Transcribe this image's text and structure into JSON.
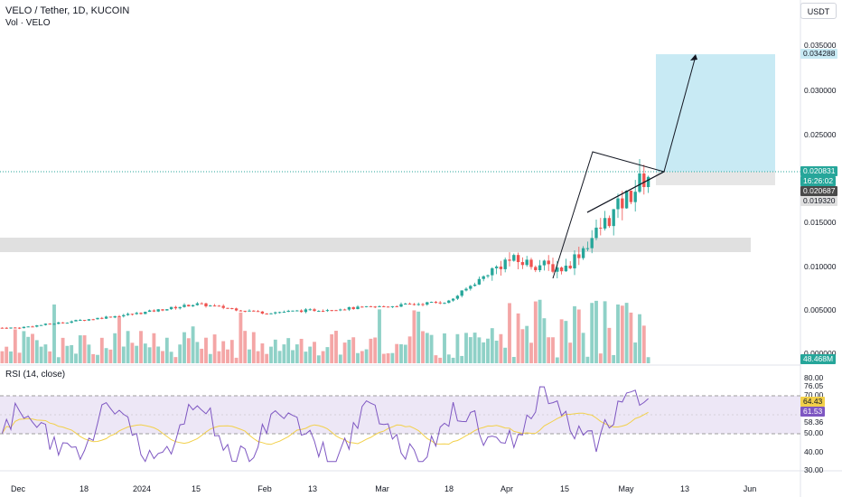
{
  "header": {
    "title": "VELO / Tether, 1D, KUCOIN",
    "volume_label": "Vol · VELO",
    "currency_button": "USDT"
  },
  "price_axis": {
    "ticks": [
      "0.035000",
      "0.030000",
      "0.025000",
      "0.015000",
      "0.010000",
      "0.005000",
      "0.000000"
    ],
    "badges": {
      "target": "0.034288",
      "last": "0.020831",
      "countdown": "16:26:02",
      "level_a": "0.020687",
      "level_b": "0.019320",
      "volume": "48.468M"
    }
  },
  "rsi_panel": {
    "label": "RSI (14, close)",
    "ticks": [
      "80.00",
      "76.05",
      "70.00",
      "60.00",
      "50.00",
      "40.00",
      "30.00"
    ],
    "badges": {
      "rsi": "61.53",
      "rsi_ma": "64.43",
      "level": "58.36"
    }
  },
  "time_axis": {
    "labels": [
      "Dec",
      "18",
      "2024",
      "15",
      "Feb",
      "13",
      "Mar",
      "18",
      "Apr",
      "15",
      "May",
      "13",
      "Jun"
    ]
  },
  "colors": {
    "up": "#26a69a",
    "down": "#ef5350",
    "vol_up": "#8fd1c7",
    "vol_down": "#f4a6a6",
    "rsi_line": "#7e57c2",
    "rsi_ma": "#f2d04a",
    "target_box": "#c8eaf4",
    "sr_zone": "#e0e0e0",
    "price_badge": "#26a69a"
  },
  "chart_data": {
    "type": "candlestick",
    "symbol": "VELO / Tether",
    "timeframe": "1D",
    "exchange": "KUCOIN",
    "ylim": [
      0,
      0.035
    ],
    "x": [
      "Dec",
      "18",
      "2024",
      "15",
      "Feb",
      "13",
      "Mar",
      "18",
      "Apr",
      "15",
      "May",
      "13",
      "Jun"
    ],
    "close_anchors": [
      {
        "x": "Dec",
        "close": 0.0028
      },
      {
        "x": "2024",
        "close": 0.0045
      },
      {
        "x": "15",
        "close": 0.0055
      },
      {
        "x": "Feb",
        "close": 0.0045
      },
      {
        "x": "13",
        "close": 0.0048
      },
      {
        "x": "Mar",
        "close": 0.0052
      },
      {
        "x": "18",
        "close": 0.0058
      },
      {
        "x": "Apr",
        "close": 0.0105
      },
      {
        "x": "15",
        "close": 0.0095
      },
      {
        "x": "May",
        "close": 0.0206
      }
    ],
    "last_price": 0.020831,
    "target_price": 0.034288,
    "support_zone": [
      0.0115,
      0.0132
    ],
    "annotations": [
      "symmetrical triangle",
      "projected breakout to 0.034288"
    ],
    "rsi": {
      "period": 14,
      "last": 61.53,
      "ma": 64.43,
      "bands": [
        70,
        50
      ],
      "ylim": [
        30,
        80
      ]
    }
  }
}
